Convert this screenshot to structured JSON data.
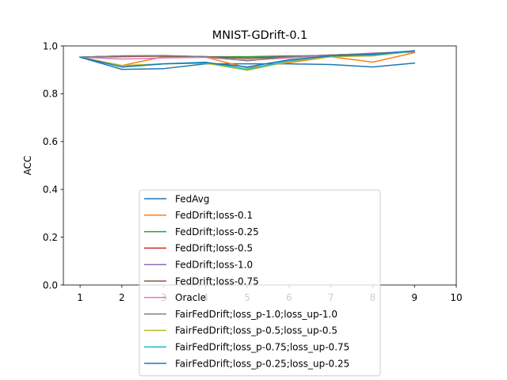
{
  "chart_data": {
    "type": "line",
    "title": "MNIST-GDrift-0.1",
    "xlabel": "",
    "ylabel": "ACC",
    "xlim": [
      0.6,
      10.0
    ],
    "ylim": [
      0.0,
      1.0
    ],
    "xticks": [
      1,
      2,
      3,
      4,
      5,
      6,
      7,
      8,
      9,
      10
    ],
    "yticks": [
      0.0,
      0.2,
      0.4,
      0.6,
      0.8,
      1.0
    ],
    "xtick_labels": [
      "1",
      "2",
      "3",
      "4",
      "5",
      "6",
      "7",
      "8",
      "9",
      "10"
    ],
    "ytick_labels": [
      "0.0",
      "0.2",
      "0.4",
      "0.6",
      "0.8",
      "1.0"
    ],
    "grid": false,
    "legend_position": "lower-center",
    "x": [
      1,
      2,
      3,
      4,
      5,
      6,
      7,
      8,
      9
    ],
    "series": [
      {
        "name": "FedAvg",
        "color": "#1f77b4",
        "values": [
          0.953,
          0.902,
          0.905,
          0.925,
          0.925,
          0.925,
          0.922,
          0.912,
          0.928
        ]
      },
      {
        "name": "FedDrift;loss-0.1",
        "color": "#ff7f0e",
        "values": [
          0.953,
          0.918,
          0.955,
          0.953,
          0.908,
          0.93,
          0.955,
          0.932,
          0.972
        ]
      },
      {
        "name": "FedDrift;loss-0.25",
        "color": "#2ca02c",
        "values": [
          0.953,
          0.958,
          0.958,
          0.955,
          0.955,
          0.958,
          0.96,
          0.965,
          0.975
        ]
      },
      {
        "name": "FedDrift;loss-0.5",
        "color": "#d62728",
        "values": [
          0.953,
          0.955,
          0.958,
          0.955,
          0.948,
          0.955,
          0.962,
          0.968,
          0.976
        ]
      },
      {
        "name": "FedDrift;loss-1.0",
        "color": "#9467bd",
        "values": [
          0.953,
          0.958,
          0.958,
          0.955,
          0.95,
          0.955,
          0.962,
          0.968,
          0.978
        ]
      },
      {
        "name": "FedDrift;loss-0.75",
        "color": "#8c564b",
        "values": [
          0.953,
          0.957,
          0.957,
          0.955,
          0.948,
          0.955,
          0.961,
          0.967,
          0.976
        ]
      },
      {
        "name": "Oracle",
        "color": "#e377c2",
        "values": [
          0.953,
          0.945,
          0.95,
          0.952,
          0.94,
          0.95,
          0.96,
          0.97,
          0.975
        ]
      },
      {
        "name": "FairFedDrift;loss_p-1.0;loss_up-1.0",
        "color": "#7f7f7f",
        "values": [
          0.953,
          0.958,
          0.96,
          0.955,
          0.938,
          0.955,
          0.962,
          0.968,
          0.978
        ]
      },
      {
        "name": "FairFedDrift;loss_p-0.5;loss_up-0.5",
        "color": "#bcbd22",
        "values": [
          0.953,
          0.918,
          0.925,
          0.928,
          0.898,
          0.935,
          0.955,
          0.958,
          0.978
        ]
      },
      {
        "name": "FairFedDrift;loss_p-0.75;loss_up-0.75",
        "color": "#17becf",
        "values": [
          0.953,
          0.912,
          0.925,
          0.932,
          0.902,
          0.938,
          0.958,
          0.962,
          0.978
        ]
      },
      {
        "name": "FairFedDrift;loss_p-0.25;loss_up-0.25",
        "color": "#1f77b4",
        "values": [
          0.953,
          0.912,
          0.925,
          0.93,
          0.912,
          0.942,
          0.958,
          0.965,
          0.98
        ]
      }
    ]
  }
}
